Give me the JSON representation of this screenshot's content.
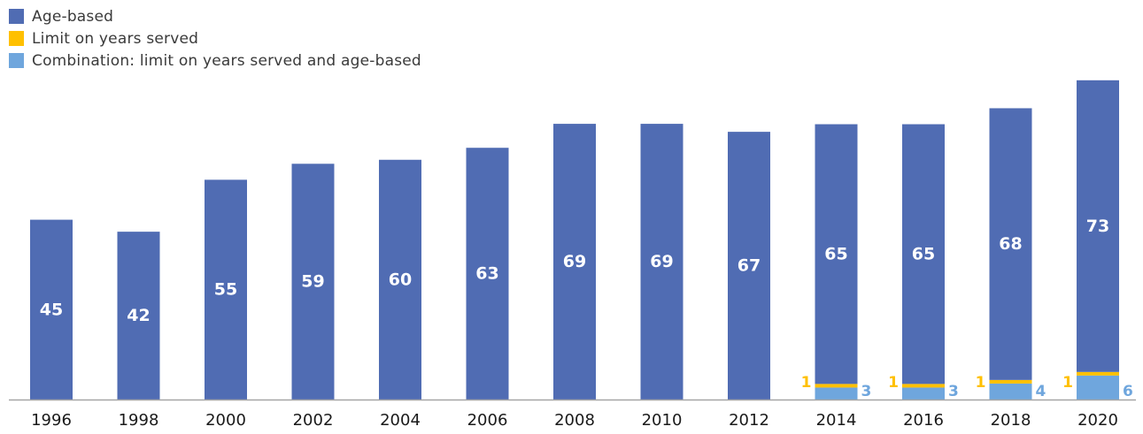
{
  "colors": {
    "age_based": "#506cb3",
    "limit_years": "#ffc000",
    "combination": "#6fa6dd",
    "axis": "#a6a6a6",
    "tick_text": "#1a1a1a",
    "bar_label_text": "#ffffff"
  },
  "chart_data": {
    "type": "bar",
    "stacked": true,
    "categories": [
      "1996",
      "1998",
      "2000",
      "2002",
      "2004",
      "2006",
      "2008",
      "2010",
      "2012",
      "2014",
      "2016",
      "2018",
      "2020"
    ],
    "series": [
      {
        "name": "Combination: limit on years served and age-based",
        "key": "combination",
        "values": [
          0,
          0,
          0,
          0,
          0,
          0,
          0,
          0,
          0,
          3,
          3,
          4,
          6
        ]
      },
      {
        "name": "Limit on years served",
        "key": "limit_years",
        "values": [
          0,
          0,
          0,
          0,
          0,
          0,
          0,
          0,
          0,
          1,
          1,
          1,
          1
        ]
      },
      {
        "name": "Age-based",
        "key": "age_based",
        "values": [
          45,
          42,
          55,
          59,
          60,
          63,
          69,
          69,
          67,
          65,
          65,
          68,
          73
        ]
      }
    ],
    "legend": [
      "Age-based",
      "Limit on years served",
      "Combination: limit on years served and age-based"
    ],
    "legend_position": "top-left",
    "title": "",
    "xlabel": "",
    "ylabel": "",
    "ylim": [
      0,
      80
    ],
    "grid": false,
    "y_axis_visible": false
  }
}
